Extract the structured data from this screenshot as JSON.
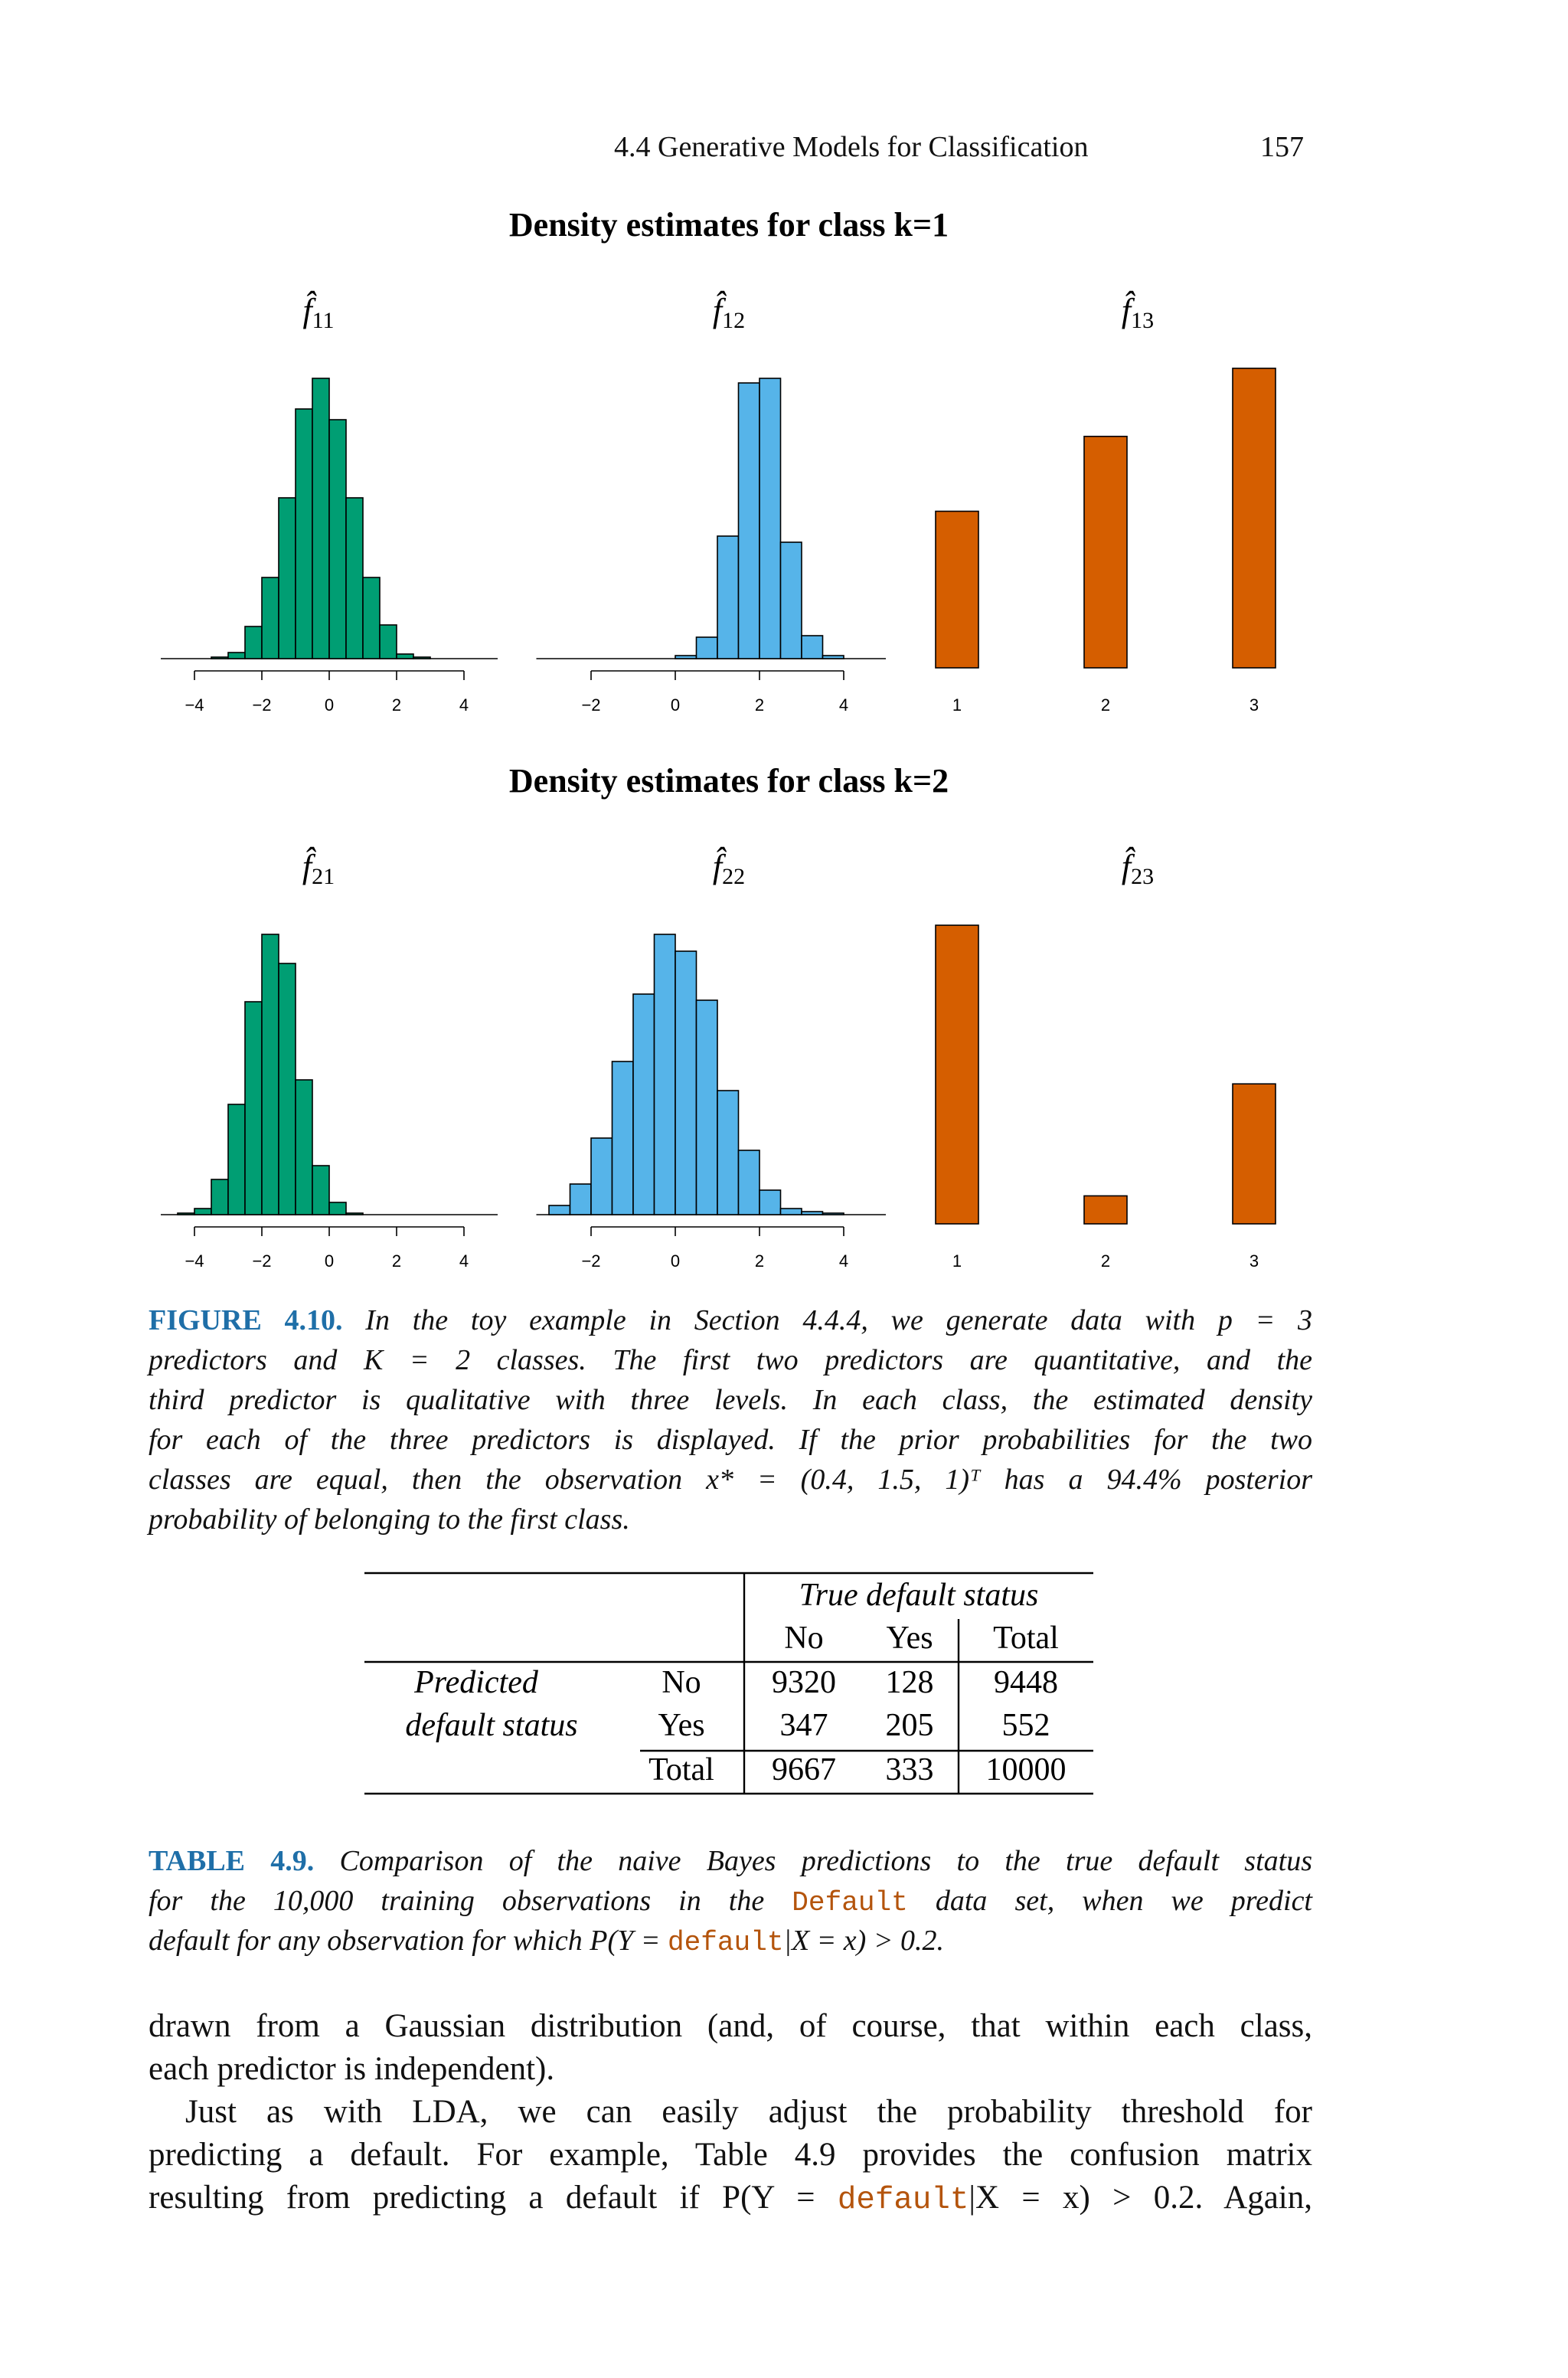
{
  "header": {
    "section": "4.4 Generative Models for Classification",
    "page": "157"
  },
  "figure": {
    "titles": [
      "Density estimates for class k=1",
      "Density estimates for class k=2"
    ]
  },
  "chart_data": [
    {
      "type": "histogram",
      "label": {
        "base": "f̂",
        "sub": "11"
      },
      "color": "#009E73",
      "bins": [
        -3.5,
        -3,
        -2.5,
        -2,
        -1.5,
        -1,
        -0.5,
        0,
        0.5,
        1,
        1.5,
        2,
        2.5,
        3
      ],
      "values": [
        1,
        4,
        21,
        53,
        105,
        163,
        183,
        156,
        105,
        53,
        22,
        3,
        1
      ],
      "xlim": [
        -5,
        5
      ],
      "ylim": [
        0,
        190
      ],
      "xticks": [
        {
          "value": -4,
          "label": "−4"
        },
        {
          "value": -2,
          "label": "−2"
        },
        0,
        2,
        4
      ]
    },
    {
      "type": "histogram",
      "label": {
        "base": "f̂",
        "sub": "12"
      },
      "color": "#56B4E9",
      "bins": [
        0,
        0.5,
        1,
        1.5,
        2,
        2.5,
        3,
        3.5,
        4
      ],
      "values": [
        2,
        14,
        80,
        180,
        183,
        76,
        15,
        2
      ],
      "xlim": [
        -3.3,
        5
      ],
      "ylim": [
        0,
        190
      ],
      "xticks": [
        {
          "value": -2,
          "label": "−2"
        },
        0,
        2,
        4
      ]
    },
    {
      "type": "bar",
      "label": {
        "base": "f̂",
        "sub": "13"
      },
      "color": "#D55E00",
      "categories": [
        "1",
        "2",
        "3"
      ],
      "values": [
        0.23,
        0.34,
        0.44
      ],
      "ylim": [
        0,
        0.45
      ]
    },
    {
      "type": "histogram",
      "label": {
        "base": "f̂",
        "sub": "21"
      },
      "color": "#009E73",
      "bins": [
        -4.5,
        -4,
        -3.5,
        -3,
        -2.5,
        -2,
        -1.5,
        -1,
        -0.5,
        0,
        0.5,
        1
      ],
      "values": [
        1,
        4,
        23,
        72,
        139,
        183,
        164,
        88,
        32,
        8,
        1
      ],
      "xlim": [
        -5,
        5
      ],
      "ylim": [
        0,
        190
      ],
      "xticks": [
        {
          "value": -4,
          "label": "−4"
        },
        {
          "value": -2,
          "label": "−2"
        },
        0,
        2,
        4
      ]
    },
    {
      "type": "histogram",
      "label": {
        "base": "f̂",
        "sub": "22"
      },
      "color": "#56B4E9",
      "bins": [
        -3,
        -2.5,
        -2,
        -1.5,
        -1,
        -0.5,
        0,
        0.5,
        1,
        1.5,
        2,
        2.5,
        3,
        3.5,
        4
      ],
      "values": [
        6,
        20,
        50,
        100,
        144,
        183,
        172,
        140,
        81,
        42,
        16,
        4,
        2,
        1
      ],
      "xlim": [
        -3.3,
        5
      ],
      "ylim": [
        0,
        190
      ],
      "xticks": [
        {
          "value": -2,
          "label": "−2"
        },
        0,
        2,
        4
      ]
    },
    {
      "type": "bar",
      "label": {
        "base": "f̂",
        "sub": "23"
      },
      "color": "#D55E00",
      "categories": [
        "1",
        "2",
        "3"
      ],
      "values": [
        0.64,
        0.06,
        0.3
      ],
      "ylim": [
        0,
        0.65
      ]
    }
  ],
  "figure_caption": {
    "label": "FIGURE 4.10.",
    "lines": [
      [
        " In the toy example in Section 4.4.4, we generate data with p = 3"
      ],
      [
        "predictors and K = 2 classes. The first two predictors are quantitative, and the"
      ],
      [
        "third predictor is qualitative with three levels. In each class, the estimated density"
      ],
      [
        "for each of the three predictors is displayed. If the prior probabilities for the two"
      ],
      [
        "classes are equal, then the observation x* = (0.4, 1.5, 1)ᵀ has a 94.4% posterior"
      ],
      [
        "probability of belonging to the first class."
      ]
    ]
  },
  "table": {
    "column_group": "True default status",
    "columns": [
      "No",
      "Yes",
      "Total"
    ],
    "row_group": [
      "Predicted",
      "default status"
    ],
    "rows": [
      {
        "label": "No",
        "values": [
          9320,
          128,
          9448
        ]
      },
      {
        "label": "Yes",
        "values": [
          347,
          205,
          552
        ]
      },
      {
        "label": "Total",
        "values": [
          9667,
          333,
          10000
        ]
      }
    ]
  },
  "table_caption": {
    "label": "TABLE 4.9.",
    "lines": [
      [
        " Comparison of the naive Bayes predictions to the true default status"
      ],
      [
        "for the 10,000 training observations in the ",
        {
          "code": "Default"
        },
        " data set, when we predict"
      ],
      [
        "default for any observation for which P(Y = ",
        {
          "code": "default"
        },
        "|X = x) > 0.2."
      ]
    ]
  },
  "body": {
    "lines": [
      [
        "drawn from a Gaussian distribution (and, of course, that within each class,"
      ],
      [
        "each predictor is independent)."
      ],
      [
        "Just as with LDA, we can easily adjust the probability threshold for"
      ],
      [
        "predicting a default. For example, Table 4.9 provides the confusion matrix"
      ],
      [
        "resulting from predicting a default if P(Y = ",
        {
          "code": "default"
        },
        "|X = x) > 0.2. Again,"
      ]
    ]
  }
}
